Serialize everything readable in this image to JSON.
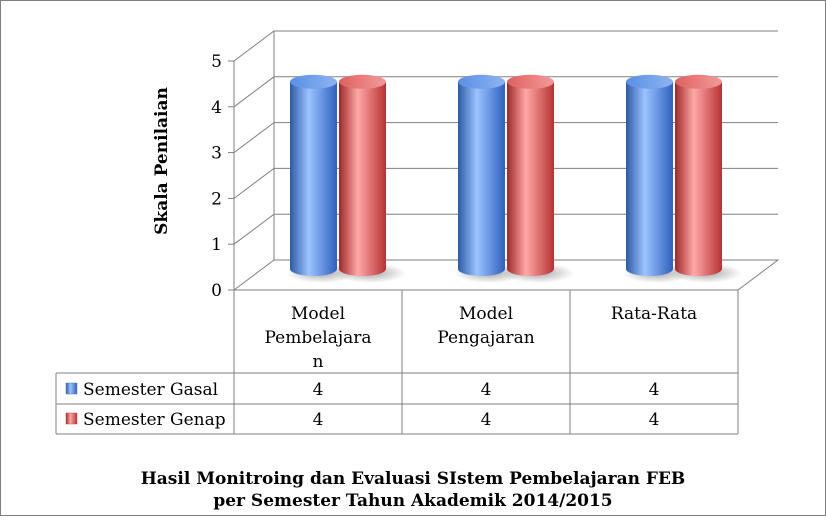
{
  "chart_data": {
    "type": "bar",
    "style": "3d-cylinder",
    "title_lines": [
      "Hasil Monitroing dan Evaluasi SIstem Pembelajaran FEB",
      "per Semester Tahun Akademik 2014/2015"
    ],
    "xlabel": "",
    "ylabel": "Skala Penilaian",
    "ylim": [
      0,
      5
    ],
    "yticks": [
      "0",
      "1",
      "2",
      "3",
      "4",
      "5"
    ],
    "category_lines": [
      [
        "Model",
        "Pembelajara",
        "n"
      ],
      [
        "Model",
        "Pengajaran"
      ],
      [
        "Rata-Rata"
      ]
    ],
    "categories": [
      "Model Pembelajaran",
      "Model Pengajaran",
      "Rata-Rata"
    ],
    "grid": true,
    "legend": "data-table",
    "series": [
      {
        "name": "Semester Gasal",
        "color": "#4f81bd",
        "values": [
          4,
          4,
          4
        ],
        "value_labels": [
          "4",
          "4",
          "4"
        ]
      },
      {
        "name": "Semester Genap",
        "color": "#c0504d",
        "values": [
          4,
          4,
          4
        ],
        "value_labels": [
          "4",
          "4",
          "4"
        ]
      }
    ]
  }
}
